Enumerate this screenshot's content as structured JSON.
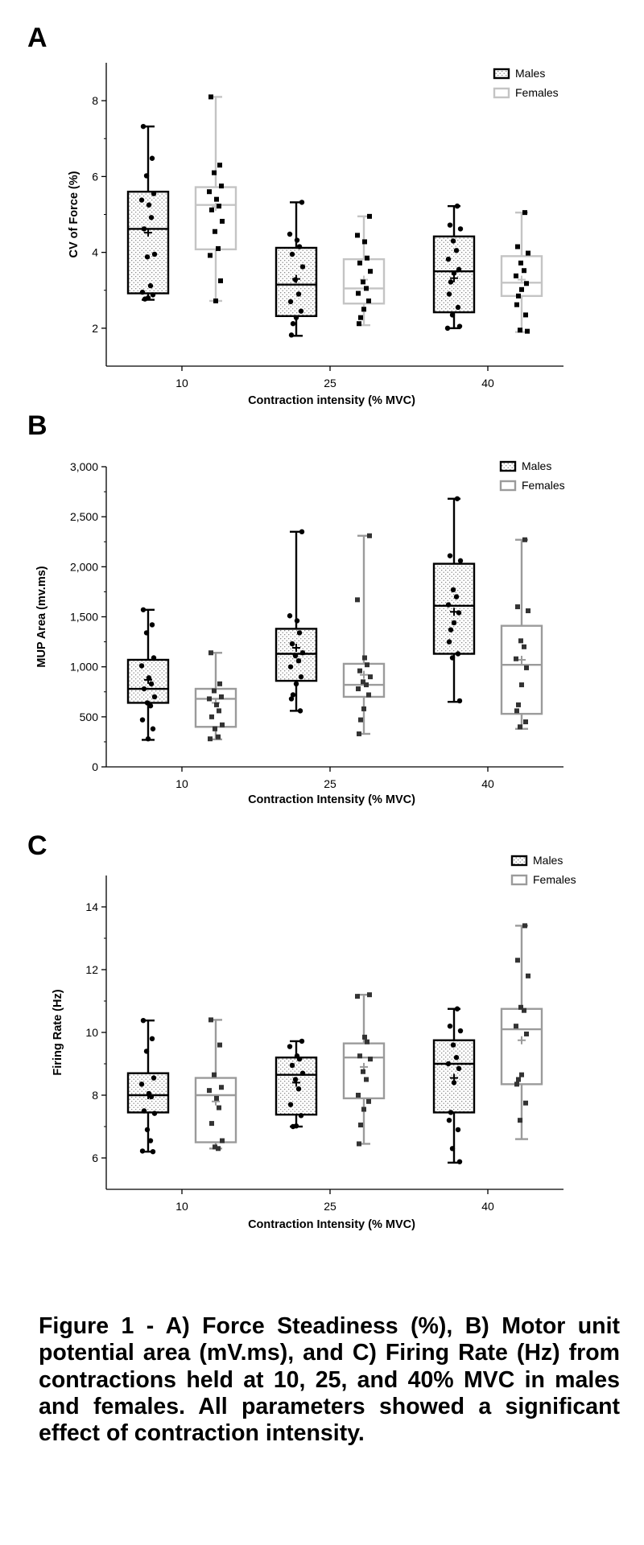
{
  "panels": [
    {
      "letter": "A",
      "chart_data": {
        "type": "box",
        "title": "",
        "xlabel": "Contraction intensity (% MVC)",
        "ylabel": "CV of  Force (%)",
        "categories": [
          "10",
          "25",
          "40"
        ],
        "ylim": [
          1,
          9
        ],
        "yticks": [
          2,
          4,
          6,
          8
        ],
        "ytick_labels": [
          "2",
          "4",
          "6",
          "8"
        ],
        "legend_position": "top-right",
        "grid": false,
        "series": [
          {
            "name": "Males",
            "color": "#000000",
            "fill": "dotted",
            "boxes": [
              {
                "category": "10",
                "min": 2.75,
                "q1": 2.92,
                "median": 4.62,
                "q3": 5.6,
                "max": 7.32,
                "mean": 4.52,
                "points": [
                  7.32,
                  6.48,
                  6.02,
                  5.55,
                  5.38,
                  5.25,
                  4.92,
                  4.62,
                  3.95,
                  3.88,
                  3.12,
                  2.95,
                  2.88,
                  2.8,
                  2.77
                ]
              },
              {
                "category": "25",
                "min": 1.8,
                "q1": 2.32,
                "median": 3.15,
                "q3": 4.12,
                "max": 5.32,
                "mean": 3.3,
                "points": [
                  5.32,
                  4.48,
                  4.32,
                  4.15,
                  3.95,
                  3.62,
                  3.28,
                  2.9,
                  2.7,
                  2.45,
                  2.28,
                  2.12,
                  1.82
                ]
              },
              {
                "category": "40",
                "min": 2.0,
                "q1": 2.42,
                "median": 3.5,
                "q3": 4.42,
                "max": 5.22,
                "mean": 3.32,
                "points": [
                  5.22,
                  4.72,
                  4.62,
                  4.3,
                  4.05,
                  3.82,
                  3.55,
                  3.45,
                  3.22,
                  2.9,
                  2.55,
                  2.35,
                  2.05,
                  2.0
                ]
              }
            ]
          },
          {
            "name": "Females",
            "color": "#c4c4c4",
            "fill": "none",
            "boxes": [
              {
                "category": "10",
                "min": 2.72,
                "q1": 4.08,
                "median": 5.25,
                "q3": 5.72,
                "max": 8.1,
                "mean": 5.2,
                "points": [
                  8.1,
                  6.3,
                  6.1,
                  5.75,
                  5.6,
                  5.4,
                  5.22,
                  5.12,
                  4.82,
                  4.55,
                  4.1,
                  3.92,
                  3.25,
                  2.72
                ]
              },
              {
                "category": "25",
                "min": 2.08,
                "q1": 2.65,
                "median": 3.05,
                "q3": 3.82,
                "max": 4.95,
                "mean": 3.28,
                "points": [
                  4.95,
                  4.45,
                  4.28,
                  3.85,
                  3.72,
                  3.5,
                  3.22,
                  3.05,
                  2.92,
                  2.72,
                  2.5,
                  2.28,
                  2.12
                ]
              },
              {
                "category": "40",
                "min": 1.9,
                "q1": 2.85,
                "median": 3.2,
                "q3": 3.9,
                "max": 5.05,
                "mean": 3.28,
                "points": [
                  5.05,
                  4.15,
                  3.98,
                  3.72,
                  3.52,
                  3.38,
                  3.18,
                  3.02,
                  2.85,
                  2.62,
                  2.35,
                  1.95,
                  1.92
                ]
              }
            ]
          }
        ]
      }
    },
    {
      "letter": "B",
      "chart_data": {
        "type": "box",
        "title": "",
        "xlabel": "Contraction  Intensity (% MVC)",
        "ylabel": "MUP Area (mv.ms)",
        "categories": [
          "10",
          "25",
          "40"
        ],
        "ylim": [
          0,
          3000
        ],
        "yticks": [
          0,
          500,
          1000,
          1500,
          2000,
          2500,
          3000
        ],
        "ytick_labels": [
          "0",
          "500",
          "1,000",
          "1,500",
          "2,000",
          "2,500",
          "3,000"
        ],
        "legend_position": "top-right",
        "grid": false,
        "series": [
          {
            "name": "Males",
            "color": "#000000",
            "fill": "dotted",
            "boxes": [
              {
                "category": "10",
                "min": 270,
                "q1": 640,
                "median": 780,
                "q3": 1070,
                "max": 1570,
                "mean": 870,
                "points": [
                  1570,
                  1420,
                  1340,
                  1090,
                  1010,
                  890,
                  830,
                  780,
                  700,
                  640,
                  610,
                  470,
                  380,
                  280
                ]
              },
              {
                "category": "25",
                "min": 560,
                "q1": 860,
                "median": 1130,
                "q3": 1380,
                "max": 2350,
                "mean": 1190,
                "points": [
                  2350,
                  1510,
                  1460,
                  1340,
                  1230,
                  1140,
                  1110,
                  1060,
                  1000,
                  900,
                  830,
                  720,
                  680,
                  560
                ]
              },
              {
                "category": "40",
                "min": 650,
                "q1": 1130,
                "median": 1610,
                "q3": 2030,
                "max": 2680,
                "mean": 1550,
                "points": [
                  2680,
                  2110,
                  2060,
                  1770,
                  1700,
                  1620,
                  1540,
                  1440,
                  1370,
                  1250,
                  1130,
                  1090,
                  660
                ]
              }
            ]
          },
          {
            "name": "Females",
            "color": "#9b9b9b",
            "fill": "none",
            "boxes": [
              {
                "category": "10",
                "min": 275,
                "q1": 400,
                "median": 680,
                "q3": 780,
                "max": 1140,
                "mean": 640,
                "points": [
                  1140,
                  830,
                  760,
                  700,
                  680,
                  620,
                  560,
                  500,
                  420,
                  380,
                  300,
                  280
                ]
              },
              {
                "category": "25",
                "min": 330,
                "q1": 700,
                "median": 820,
                "q3": 1030,
                "max": 2310,
                "mean": 920,
                "points": [
                  2310,
                  1670,
                  1090,
                  1020,
                  960,
                  900,
                  850,
                  820,
                  780,
                  720,
                  580,
                  470,
                  330
                ]
              },
              {
                "category": "40",
                "min": 380,
                "q1": 530,
                "median": 1020,
                "q3": 1410,
                "max": 2270,
                "mean": 1070,
                "points": [
                  2270,
                  1600,
                  1560,
                  1260,
                  1200,
                  1080,
                  990,
                  820,
                  620,
                  560,
                  450,
                  400
                ]
              }
            ]
          }
        ]
      }
    },
    {
      "letter": "C",
      "chart_data": {
        "type": "box",
        "title": "",
        "xlabel": "Contraction  Intensity (% MVC)",
        "ylabel": "Firing Rate (Hz)",
        "categories": [
          "10",
          "25",
          "40"
        ],
        "ylim": [
          5,
          15
        ],
        "yticks": [
          6,
          8,
          10,
          12,
          14
        ],
        "ytick_labels": [
          "6",
          "8",
          "10",
          "12",
          "14"
        ],
        "legend_position": "top-right",
        "grid": false,
        "series": [
          {
            "name": "Males",
            "color": "#000000",
            "fill": "dotted",
            "boxes": [
              {
                "category": "10",
                "min": 6.2,
                "q1": 7.45,
                "median": 8.0,
                "q3": 8.7,
                "max": 10.38,
                "mean": 8.0,
                "points": [
                  10.38,
                  9.8,
                  9.4,
                  8.55,
                  8.35,
                  8.05,
                  7.95,
                  7.5,
                  7.42,
                  6.9,
                  6.55,
                  6.22,
                  6.2
                ]
              },
              {
                "category": "25",
                "min": 7.0,
                "q1": 7.38,
                "median": 8.65,
                "q3": 9.2,
                "max": 9.72,
                "mean": 8.4,
                "points": [
                  9.72,
                  9.55,
                  9.25,
                  9.15,
                  8.95,
                  8.7,
                  8.5,
                  8.2,
                  7.7,
                  7.35,
                  7.02,
                  7.0
                ]
              },
              {
                "category": "40",
                "min": 5.85,
                "q1": 7.45,
                "median": 9.0,
                "q3": 9.75,
                "max": 10.75,
                "mean": 8.55,
                "points": [
                  10.75,
                  10.2,
                  10.05,
                  9.6,
                  9.2,
                  9.0,
                  8.85,
                  8.4,
                  7.45,
                  7.2,
                  6.9,
                  6.3,
                  5.88
                ]
              }
            ]
          },
          {
            "name": "Females",
            "color": "#9b9b9b",
            "fill": "none",
            "boxes": [
              {
                "category": "10",
                "min": 6.3,
                "q1": 6.5,
                "median": 8.0,
                "q3": 8.55,
                "max": 10.4,
                "mean": 7.8,
                "points": [
                  10.4,
                  9.6,
                  8.65,
                  8.25,
                  8.15,
                  7.9,
                  7.6,
                  7.1,
                  6.55,
                  6.35,
                  6.3
                ]
              },
              {
                "category": "25",
                "min": 6.45,
                "q1": 7.9,
                "median": 9.2,
                "q3": 9.65,
                "max": 11.2,
                "mean": 8.9,
                "points": [
                  11.2,
                  11.15,
                  9.85,
                  9.7,
                  9.25,
                  9.15,
                  8.75,
                  8.5,
                  8.0,
                  7.8,
                  7.55,
                  7.05,
                  6.45
                ]
              },
              {
                "category": "40",
                "min": 6.6,
                "q1": 8.35,
                "median": 10.1,
                "q3": 10.75,
                "max": 13.4,
                "mean": 9.75,
                "points": [
                  13.4,
                  12.3,
                  11.8,
                  10.8,
                  10.7,
                  10.2,
                  9.95,
                  8.65,
                  8.5,
                  8.35,
                  7.75,
                  7.2
                ]
              }
            ]
          }
        ]
      }
    }
  ],
  "caption": "Figure 1 - A) Force Steadiness (%), B) Motor unit potential area (mV.ms), and C) Firing Rate (Hz) from contractions held at 10, 25, and 40% MVC in males and females. All parameters showed a significant effect of contraction intensity."
}
